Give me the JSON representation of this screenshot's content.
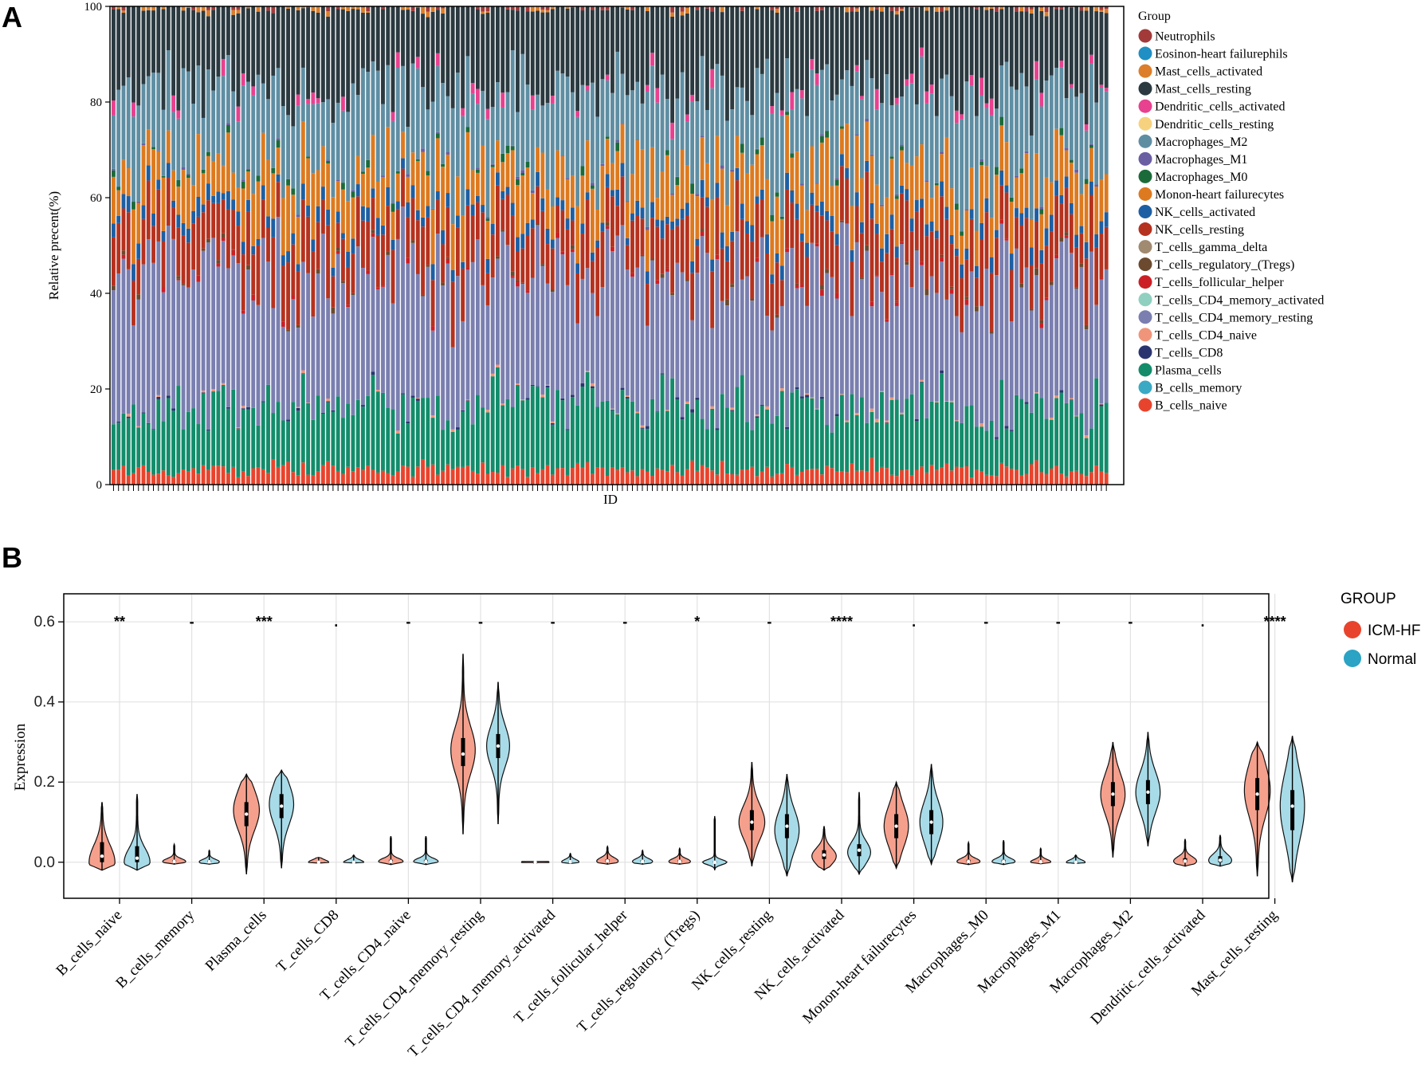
{
  "panel_a_label": "A",
  "panel_b_label": "B",
  "chart_data": [
    {
      "type": "bar",
      "stacked": true,
      "ylabel": "Relative precent(%)",
      "xlabel": "ID",
      "ylim": [
        0,
        100
      ],
      "yticks": [
        "0",
        "20",
        "40",
        "60",
        "80",
        "100"
      ],
      "n_samples": 200,
      "legend_title": "Group",
      "legend_placement": "right",
      "components": [
        {
          "name": "Neutrophils",
          "color": "#a33a3a",
          "mean": 0.2
        },
        {
          "name": "Eosinon-heart failurephils",
          "color": "#1f8fc4",
          "mean": 0.0
        },
        {
          "name": "Mast_cells_activated",
          "color": "#dc7e2a",
          "mean": 0.2
        },
        {
          "name": "Mast_cells_resting",
          "color": "#2b3a40",
          "mean": 16
        },
        {
          "name": "Dendritic_cells_activated",
          "color": "#e7418f",
          "mean": 0.7
        },
        {
          "name": "Dendritic_cells_resting",
          "color": "#f7d27e",
          "mean": 0.0
        },
        {
          "name": "Macrophages_M2",
          "color": "#5f8ea3",
          "mean": 16.5
        },
        {
          "name": "Macrophages_M1",
          "color": "#6a5fa3",
          "mean": 0.1
        },
        {
          "name": "Macrophages_M0",
          "color": "#1b6b3a",
          "mean": 0.3
        },
        {
          "name": "Monon-heart failurecytes",
          "color": "#dd7a1f",
          "mean": 9
        },
        {
          "name": "NK_cells_activated",
          "color": "#1d5fa3",
          "mean": 2.5
        },
        {
          "name": "NK_cells_resting",
          "color": "#b5321f",
          "mean": 9.5
        },
        {
          "name": "T_cells_gamma_delta",
          "color": "#a08a70",
          "mean": 0.0
        },
        {
          "name": "T_cells_regulatory_(Tregs)",
          "color": "#6b4a2f",
          "mean": 0.2
        },
        {
          "name": "T_cells_follicular_helper",
          "color": "#cc1f25",
          "mean": 0.2
        },
        {
          "name": "T_cells_CD4_memory_activated",
          "color": "#8fd0c0",
          "mean": 0.0
        },
        {
          "name": "T_cells_CD4_memory_resting",
          "color": "#7a7fb0",
          "mean": 27
        },
        {
          "name": "T_cells_CD4_naive",
          "color": "#f0957a",
          "mean": 0.1
        },
        {
          "name": "T_cells_CD8",
          "color": "#2a3570",
          "mean": 0.1
        },
        {
          "name": "Plasma_cells",
          "color": "#138c6b",
          "mean": 13
        },
        {
          "name": "B_cells_memory",
          "color": "#3aa9c4",
          "mean": 0.0
        },
        {
          "name": "B_cells_naive",
          "color": "#e8442d",
          "mean": 3
        }
      ]
    },
    {
      "type": "violin",
      "ylabel": "Expression",
      "ylim": [
        -0.09,
        0.67
      ],
      "yticks": [
        "0.0",
        "0.2",
        "0.4",
        "0.6"
      ],
      "grid": true,
      "legend_title": "GROUP",
      "legend_placement": "right",
      "groups": [
        {
          "name": "ICM-HF",
          "color": "#e8442d",
          "fill": "#f5a08d"
        },
        {
          "name": "Normal",
          "color": "#2aa3c4",
          "fill": "#a8dbe8"
        }
      ],
      "categories": [
        {
          "label": "B_cells_naive",
          "sig": "**",
          "icm": {
            "median": 0.015,
            "q1": 0.0,
            "q3": 0.05,
            "lo": -0.02,
            "hi": 0.15,
            "mode": 0.0,
            "w": 0.9
          },
          "normal": {
            "median": 0.01,
            "q1": 0.0,
            "q3": 0.04,
            "lo": -0.02,
            "hi": 0.17,
            "mode": 0.0,
            "w": 0.9
          }
        },
        {
          "label": "B_cells_memory",
          "sig": "-",
          "icm": {
            "median": 0.002,
            "q1": 0.0,
            "q3": 0.005,
            "lo": -0.005,
            "hi": 0.045,
            "mode": 0.002,
            "w": 0.8
          },
          "normal": {
            "median": 0.001,
            "q1": 0.0,
            "q3": 0.004,
            "lo": -0.005,
            "hi": 0.03,
            "mode": 0.001,
            "w": 0.7
          }
        },
        {
          "label": "Plasma_cells",
          "sig": "***",
          "icm": {
            "median": 0.12,
            "q1": 0.09,
            "q3": 0.15,
            "lo": -0.03,
            "hi": 0.22,
            "mode": 0.13,
            "w": 0.9
          },
          "normal": {
            "median": 0.14,
            "q1": 0.11,
            "q3": 0.17,
            "lo": -0.015,
            "hi": 0.23,
            "mode": 0.145,
            "w": 0.85
          }
        },
        {
          "label": "T_cells_CD8",
          "sig": ".",
          "icm": {
            "median": 0.0,
            "q1": 0.0,
            "q3": 0.001,
            "lo": -0.002,
            "hi": 0.012,
            "mode": 0.0,
            "w": 0.7
          },
          "normal": {
            "median": 0.0,
            "q1": 0.0,
            "q3": 0.002,
            "lo": -0.002,
            "hi": 0.018,
            "mode": 0.0,
            "w": 0.7
          }
        },
        {
          "label": "T_cells_CD4_naive",
          "sig": "-",
          "icm": {
            "median": 0.002,
            "q1": 0.0,
            "q3": 0.006,
            "lo": -0.006,
            "hi": 0.065,
            "mode": 0.002,
            "w": 0.85
          },
          "normal": {
            "median": 0.002,
            "q1": 0.0,
            "q3": 0.006,
            "lo": -0.006,
            "hi": 0.065,
            "mode": 0.002,
            "w": 0.85
          }
        },
        {
          "label": "T_cells_CD4_memory_resting",
          "sig": "-",
          "icm": {
            "median": 0.27,
            "q1": 0.24,
            "q3": 0.31,
            "lo": 0.07,
            "hi": 0.52,
            "mode": 0.28,
            "w": 0.85
          },
          "normal": {
            "median": 0.29,
            "q1": 0.26,
            "q3": 0.32,
            "lo": 0.095,
            "hi": 0.45,
            "mode": 0.29,
            "w": 0.8
          }
        },
        {
          "label": "T_cells_CD4_memory_activated",
          "sig": "-",
          "icm": {
            "median": 0.0,
            "q1": 0.0,
            "q3": 0.0,
            "lo": -0.001,
            "hi": 0.002,
            "mode": 0.0,
            "w": 0.95
          },
          "normal": {
            "median": 0.001,
            "q1": 0.0,
            "q3": 0.003,
            "lo": -0.003,
            "hi": 0.022,
            "mode": 0.001,
            "w": 0.6
          }
        },
        {
          "label": "T_cells_follicular_helper",
          "sig": "-",
          "icm": {
            "median": 0.003,
            "q1": 0.0,
            "q3": 0.007,
            "lo": -0.005,
            "hi": 0.04,
            "mode": 0.003,
            "w": 0.75
          },
          "normal": {
            "median": 0.002,
            "q1": 0.0,
            "q3": 0.005,
            "lo": -0.005,
            "hi": 0.03,
            "mode": 0.002,
            "w": 0.7
          }
        },
        {
          "label": "T_cells_regulatory_(Tregs)",
          "sig": "*",
          "icm": {
            "median": 0.002,
            "q1": 0.0,
            "q3": 0.005,
            "lo": -0.005,
            "hi": 0.035,
            "mode": 0.002,
            "w": 0.75
          },
          "normal": {
            "median": 0.0,
            "q1": 0.0,
            "q3": 0.002,
            "lo": -0.02,
            "hi": 0.115,
            "mode": 0.0,
            "w": 0.85
          }
        },
        {
          "label": "NK_cells_resting",
          "sig": "-",
          "icm": {
            "median": 0.1,
            "q1": 0.08,
            "q3": 0.13,
            "lo": -0.01,
            "hi": 0.25,
            "mode": 0.1,
            "w": 0.9
          },
          "normal": {
            "median": 0.09,
            "q1": 0.06,
            "q3": 0.12,
            "lo": -0.035,
            "hi": 0.22,
            "mode": 0.08,
            "w": 0.85
          }
        },
        {
          "label": "NK_cells_activated",
          "sig": "****",
          "icm": {
            "median": 0.018,
            "q1": 0.008,
            "q3": 0.03,
            "lo": -0.02,
            "hi": 0.09,
            "mode": 0.015,
            "w": 0.85
          },
          "normal": {
            "median": 0.03,
            "q1": 0.015,
            "q3": 0.045,
            "lo": -0.03,
            "hi": 0.175,
            "mode": 0.025,
            "w": 0.8
          }
        },
        {
          "label": "Monon-heart failurecytes",
          "sig": ".",
          "icm": {
            "median": 0.09,
            "q1": 0.06,
            "q3": 0.12,
            "lo": -0.015,
            "hi": 0.2,
            "mode": 0.09,
            "w": 0.85
          },
          "normal": {
            "median": 0.1,
            "q1": 0.07,
            "q3": 0.13,
            "lo": -0.005,
            "hi": 0.245,
            "mode": 0.1,
            "w": 0.8
          }
        },
        {
          "label": "Macrophages_M0",
          "sig": "-",
          "icm": {
            "median": 0.002,
            "q1": 0.0,
            "q3": 0.006,
            "lo": -0.006,
            "hi": 0.05,
            "mode": 0.002,
            "w": 0.8
          },
          "normal": {
            "median": 0.002,
            "q1": 0.0,
            "q3": 0.006,
            "lo": -0.006,
            "hi": 0.055,
            "mode": 0.002,
            "w": 0.8
          }
        },
        {
          "label": "Macrophages_M1",
          "sig": "-",
          "icm": {
            "median": 0.001,
            "q1": 0.0,
            "q3": 0.004,
            "lo": -0.004,
            "hi": 0.035,
            "mode": 0.001,
            "w": 0.7
          },
          "normal": {
            "median": 0.0,
            "q1": 0.0,
            "q3": 0.002,
            "lo": -0.003,
            "hi": 0.018,
            "mode": 0.0,
            "w": 0.65
          }
        },
        {
          "label": "Macrophages_M2",
          "sig": "-",
          "icm": {
            "median": 0.17,
            "q1": 0.14,
            "q3": 0.2,
            "lo": 0.012,
            "hi": 0.3,
            "mode": 0.17,
            "w": 0.85
          },
          "normal": {
            "median": 0.175,
            "q1": 0.145,
            "q3": 0.205,
            "lo": 0.04,
            "hi": 0.325,
            "mode": 0.175,
            "w": 0.85
          }
        },
        {
          "label": "Dendritic_cells_activated",
          "sig": ".",
          "icm": {
            "median": 0.003,
            "q1": 0.0,
            "q3": 0.01,
            "lo": -0.01,
            "hi": 0.058,
            "mode": 0.003,
            "w": 0.8
          },
          "normal": {
            "median": 0.005,
            "q1": 0.0,
            "q3": 0.015,
            "lo": -0.01,
            "hi": 0.068,
            "mode": 0.005,
            "w": 0.8
          }
        },
        {
          "label": "Mast_cells_resting",
          "sig": "****",
          "icm": {
            "median": 0.17,
            "q1": 0.13,
            "q3": 0.21,
            "lo": -0.035,
            "hi": 0.3,
            "mode": 0.18,
            "w": 0.9
          },
          "normal": {
            "median": 0.14,
            "q1": 0.08,
            "q3": 0.18,
            "lo": -0.05,
            "hi": 0.315,
            "mode": 0.14,
            "w": 0.85
          }
        }
      ]
    }
  ]
}
